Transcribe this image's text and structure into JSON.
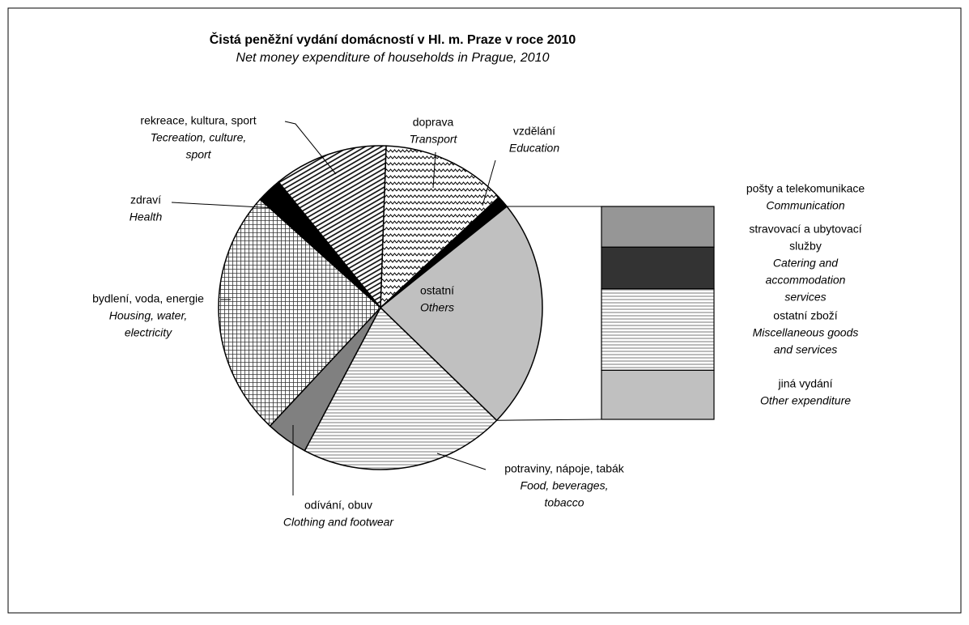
{
  "chart_data": {
    "type": "pie-of-bar",
    "title": "Čistá peněžní vydání domácností v Hl. m. Praze v roce 2010",
    "subtitle": "Net money expenditure of households  in  Prague, 2010",
    "categories": [
      {
        "cs": [
          "doprava"
        ],
        "en": [
          "Transport"
        ],
        "value": 12.5,
        "fill": "wave"
      },
      {
        "cs": [
          "vzdělání"
        ],
        "en": [
          "Education"
        ],
        "value": 1.2,
        "fill": "#000000"
      },
      {
        "cs": [
          "ostatní"
        ],
        "en": [
          "Others"
        ],
        "value": 23,
        "fill": "#c0c0c0"
      },
      {
        "cs": [
          "potraviny, nápoje, tabák"
        ],
        "en": [
          "Food, beverages,",
          "tobacco"
        ],
        "value": 20.5,
        "fill": "hlines"
      },
      {
        "cs": [
          "odívání, obuv"
        ],
        "en": [
          "Clothing and footwear"
        ],
        "value": 4.2,
        "fill": "#808080"
      },
      {
        "cs": [
          "bydlení, voda, energie"
        ],
        "en": [
          "Housing, water,",
          "electricity"
        ],
        "value": 24.7,
        "fill": "grid"
      },
      {
        "cs": [
          "zdraví"
        ],
        "en": [
          "Health"
        ],
        "value": 2.5,
        "fill": "#000000"
      },
      {
        "cs": [
          "rekreace, kultura, sport"
        ],
        "en": [
          "Tecreation, culture,",
          "sport"
        ],
        "value": 11.4,
        "fill": "diag"
      }
    ],
    "bar": [
      {
        "cs": [
          "pošty a telekomunikace"
        ],
        "en": [
          "Communication"
        ],
        "value": 4.4,
        "fill": "#969696"
      },
      {
        "cs": [
          "stravovací a ubytovací",
          "služby"
        ],
        "en": [
          "Catering and",
          "accommodation",
          "services"
        ],
        "value": 4.5,
        "fill": "#333333"
      },
      {
        "cs": [
          "ostatní zboží"
        ],
        "en": [
          "Miscellaneous goods",
          "and services"
        ],
        "value": 8.8,
        "fill": "hlines"
      },
      {
        "cs": [
          "jiná vydání"
        ],
        "en": [
          "Other expenditure"
        ],
        "value": 5.3,
        "fill": "#c0c0c0"
      }
    ]
  }
}
